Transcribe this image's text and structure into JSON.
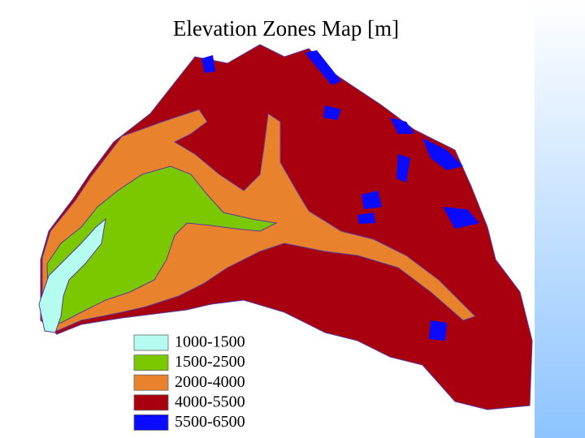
{
  "title": "Elevation Zones Map [m]",
  "legend": [
    {
      "label": "1000-1500",
      "color": "#b4fcef"
    },
    {
      "label": "1500-2500",
      "color": "#7cc800"
    },
    {
      "label": "2000-4000",
      "color": "#e8822c"
    },
    {
      "label": "4000-5500",
      "color": "#a8000e"
    },
    {
      "label": "5500-6500",
      "color": "#0a0aff"
    }
  ]
}
